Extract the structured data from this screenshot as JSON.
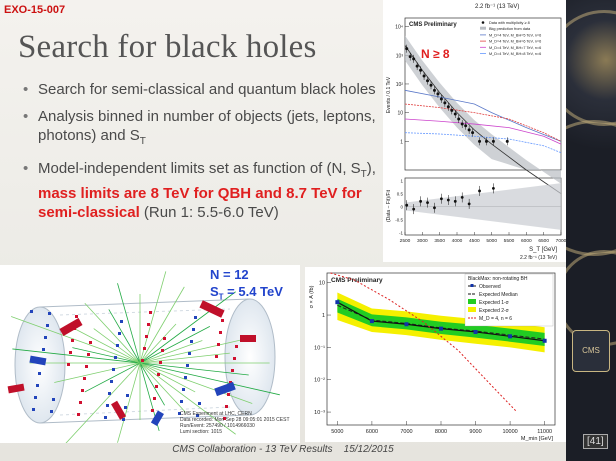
{
  "slide": {
    "tag": "EXO-15-007",
    "title": "Search for black holes",
    "bullets": [
      {
        "text": "Search for semi-classical and quantum black holes"
      },
      {
        "text": "Analysis binned in number of objects (jets, leptons, photons) and S_T"
      },
      {
        "pre": "Model-independent limits set as function of (N, S_T), ",
        "highlight": "mass limits are 8 TeV for QBH and 8.7 TeV for semi-classical",
        "post": " (Run 1: 5.5-6.0 TeV)"
      }
    ],
    "event_display": {
      "n_label": "N = 12",
      "st_label": "S_T = 5.4 TeV",
      "caption": [
        "CMS Experiment at LHC, CERN",
        "Data recorded: Mon Sep 28 09:05:01 2015 CEST",
        "Run/Event: 257490 / 1014966030",
        "Lumi section: 1015"
      ]
    },
    "footer": {
      "collab": "CMS Collaboration - 13 TeV Results",
      "date": "15/12/2015"
    },
    "page_number": "[41]",
    "colors": {
      "accent_red": "#e02020",
      "label_blue": "#2244cc"
    }
  },
  "chart_data": [
    {
      "type": "scatter",
      "title": "CMS Preliminary",
      "lumi": "2.2 fb⁻¹ (13 TeV)",
      "annotation": "N ≥ 8",
      "xlabel": "S_T [GeV]",
      "ylabel": "Events / 0.1 TeV",
      "ylabel_ratio": "(Data − Fit)/Fit",
      "x_ticks": [
        "2500",
        "3000",
        "3500",
        "4000",
        "4500",
        "5000",
        "5500",
        "6000",
        "6500",
        "7000"
      ],
      "y_ticks": [
        "1",
        "10",
        "10²",
        "10³",
        "10⁴"
      ],
      "y_ticks_all": [
        "10⁻¹",
        "1",
        "10",
        "10²",
        "10³",
        "10⁴"
      ],
      "ratio_ticks": [
        "-1",
        "-0.5",
        "0",
        "0.5",
        "1"
      ],
      "xlim": [
        2500,
        7000
      ],
      "log_y": true,
      "legend": [
        "Data with multiplicity ≥ 8",
        "Bkg prediction from data",
        "M_D=4 TeV, M_BH=5 TeV, n=6",
        "M_D=4 TeV, M_BH=6 TeV, n=6",
        "M_D=4 TeV, M_BH=7 TeV, n=6",
        "M_D=4 TeV, M_BH=8 TeV, n=6"
      ],
      "legend_position": "top-right",
      "data_points": [
        [
          2550,
          1700
        ],
        [
          2650,
          900
        ],
        [
          2750,
          750
        ],
        [
          2850,
          420
        ],
        [
          2950,
          300
        ],
        [
          3050,
          190
        ],
        [
          3150,
          130
        ],
        [
          3250,
          90
        ],
        [
          3350,
          60
        ],
        [
          3450,
          45
        ],
        [
          3550,
          30
        ],
        [
          3650,
          22
        ],
        [
          3750,
          16
        ],
        [
          3850,
          12
        ],
        [
          3950,
          9
        ],
        [
          4050,
          6
        ],
        [
          4150,
          4
        ],
        [
          4250,
          3.5
        ],
        [
          4350,
          2.5
        ],
        [
          4450,
          2
        ],
        [
          4650,
          1
        ],
        [
          4850,
          1
        ],
        [
          5050,
          1
        ],
        [
          5450,
          1
        ]
      ],
      "bkg_fit": [
        [
          2500,
          2200
        ],
        [
          3000,
          300
        ],
        [
          3500,
          50
        ],
        [
          4000,
          10
        ],
        [
          4500,
          2.5
        ],
        [
          5000,
          0.8
        ],
        [
          6000,
          0.1
        ],
        [
          7000,
          0.015
        ]
      ],
      "signals": [
        {
          "name": "M_D=4 TeV, M_BH=5 TeV, n=6",
          "points": [
            [
              2500,
              60
            ],
            [
              3500,
              35
            ],
            [
              4500,
              20
            ],
            [
              5000,
              10
            ],
            [
              6000,
              3
            ],
            [
              7000,
              1
            ]
          ]
        },
        {
          "name": "M_D=4 TeV, M_BH=6 TeV, n=6",
          "points": [
            [
              2500,
              20
            ],
            [
              3500,
              15
            ],
            [
              4500,
              10
            ],
            [
              5500,
              6
            ],
            [
              6500,
              2
            ],
            [
              7000,
              1
            ]
          ]
        },
        {
          "name": "M_D=4 TeV, M_BH=7 TeV, n=6",
          "points": [
            [
              2500,
              6
            ],
            [
              3500,
              5
            ],
            [
              4500,
              4
            ],
            [
              5500,
              3
            ],
            [
              6500,
              1.5
            ],
            [
              7000,
              0.8
            ]
          ]
        },
        {
          "name": "M_D=4 TeV, M_BH=8 TeV, n=6",
          "points": [
            [
              2500,
              2
            ],
            [
              3500,
              1.8
            ],
            [
              4500,
              1.5
            ],
            [
              5500,
              1.2
            ],
            [
              6500,
              0.7
            ],
            [
              7000,
              0.4
            ]
          ]
        }
      ],
      "ratio_points": [
        [
          2550,
          0.05
        ],
        [
          2750,
          -0.1
        ],
        [
          2950,
          0.2
        ],
        [
          3150,
          0.15
        ],
        [
          3350,
          -0.05
        ],
        [
          3550,
          0.3
        ],
        [
          3750,
          0.25
        ],
        [
          3950,
          0.2
        ],
        [
          4150,
          0.35
        ],
        [
          4350,
          0.1
        ],
        [
          4650,
          0.6
        ],
        [
          5050,
          0.7
        ]
      ]
    },
    {
      "type": "line",
      "title": "CMS Preliminary",
      "legend_title": "BlackMax: non-rotating BH",
      "xlabel": "M_min [GeV]",
      "ylabel": "σ × A (fb)",
      "x_ticks": [
        "5000",
        "6000",
        "7000",
        "8000",
        "9000",
        "10000",
        "11000"
      ],
      "y_ticks": [
        "10⁻³",
        "10⁻²",
        "10⁻¹",
        "1",
        "10"
      ],
      "xlim": [
        4700,
        11300
      ],
      "log_y": true,
      "legend": [
        "Observed",
        "Expected Median",
        "Expected 1-σ",
        "Expected 2-σ",
        "M_D = 4, n = 6"
      ],
      "legend_position": "top-right",
      "x": [
        5000,
        6000,
        7000,
        8000,
        9000,
        10000,
        11000
      ],
      "observed": [
        2.5,
        0.65,
        0.52,
        0.38,
        0.3,
        0.22,
        0.16
      ],
      "expected": [
        2.0,
        0.7,
        0.55,
        0.4,
        0.32,
        0.24,
        0.18
      ],
      "band1": [
        [
          1.2,
          3.2
        ],
        [
          0.45,
          1.05
        ],
        [
          0.36,
          0.85
        ],
        [
          0.26,
          0.62
        ],
        [
          0.2,
          0.5
        ],
        [
          0.15,
          0.38
        ],
        [
          0.11,
          0.28
        ]
      ],
      "band2": [
        [
          0.7,
          5.0
        ],
        [
          0.3,
          1.6
        ],
        [
          0.24,
          1.3
        ],
        [
          0.17,
          0.95
        ],
        [
          0.13,
          0.75
        ],
        [
          0.1,
          0.58
        ],
        [
          0.07,
          0.42
        ]
      ],
      "theory": [
        [
          4800,
          20
        ],
        [
          5500,
          12
        ],
        [
          6500,
          3
        ],
        [
          7500,
          0.6
        ],
        [
          8500,
          0.08
        ],
        [
          9500,
          0.006
        ],
        [
          10200,
          0.001
        ]
      ],
      "colors": {
        "observed": "#111111",
        "expected": "#222222",
        "band1": "#22cc22",
        "band2": "#f5f000",
        "theory": "#dd2222"
      }
    }
  ]
}
